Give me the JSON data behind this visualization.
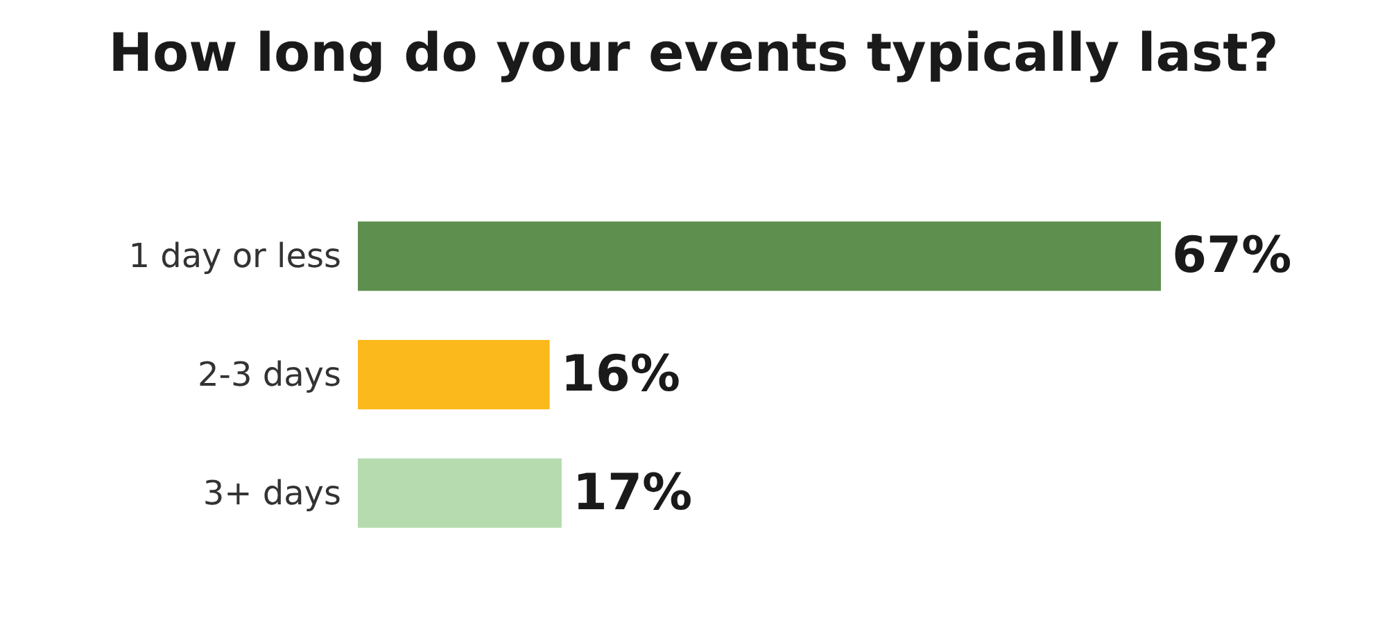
{
  "chart_data": {
    "type": "bar",
    "orientation": "horizontal",
    "title": "How long do your events typically last?",
    "categories": [
      "1 day or less",
      "2-3 days",
      "3+ days"
    ],
    "values": [
      67,
      16,
      17
    ],
    "colors": [
      "#5e8f4e",
      "#fbb91c",
      "#b5dbaf"
    ],
    "value_labels": [
      "67%",
      "16%",
      "17%"
    ]
  }
}
